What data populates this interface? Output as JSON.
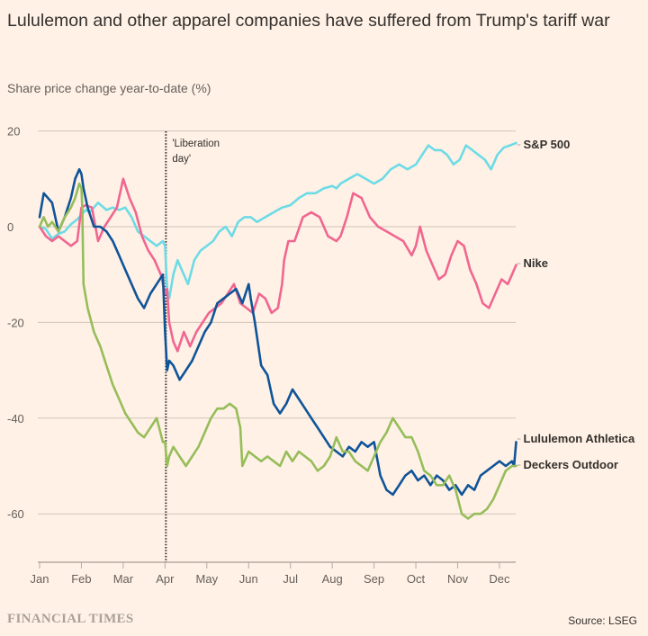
{
  "title": "Lululemon and other apparel companies have suffered from Trump's tariff war",
  "subtitle": "Share price change year-to-date (%)",
  "footer": {
    "brand": "FINANCIAL TIMES",
    "source": "Source: LSEG"
  },
  "chart_data": {
    "type": "line",
    "title": "Lululemon and other apparel companies have suffered from Trump's tariff war",
    "ylabel": "Share price change year-to-date (%)",
    "xlabel": "",
    "x_unit": "months since Jan 1",
    "xlim": [
      0,
      11.4
    ],
    "ylim": [
      -70,
      20
    ],
    "yticks": [
      20,
      0,
      -20,
      -40,
      -60
    ],
    "xticks": [
      {
        "x": 0,
        "label": "Jan"
      },
      {
        "x": 1,
        "label": "Feb"
      },
      {
        "x": 2,
        "label": "Mar"
      },
      {
        "x": 3,
        "label": "Apr"
      },
      {
        "x": 4,
        "label": "May"
      },
      {
        "x": 5,
        "label": "Jun"
      },
      {
        "x": 6,
        "label": "Jul"
      },
      {
        "x": 7,
        "label": "Aug"
      },
      {
        "x": 8,
        "label": "Sep"
      },
      {
        "x": 9,
        "label": "Oct"
      },
      {
        "x": 10,
        "label": "Nov"
      },
      {
        "x": 11,
        "label": "Dec"
      }
    ],
    "grid": true,
    "annotations": [
      {
        "x": 3.0,
        "label_line1": "'Liberation",
        "label_line2": "day'",
        "style": "dotted-vline"
      }
    ],
    "series": [
      {
        "name": "S&P 500",
        "color": "#6ddbe6",
        "x": [
          0,
          0.15,
          0.3,
          0.45,
          0.6,
          0.75,
          0.9,
          1.0,
          1.1,
          1.2,
          1.4,
          1.6,
          1.75,
          1.9,
          2.05,
          2.2,
          2.35,
          2.5,
          2.65,
          2.8,
          2.95,
          3.0,
          3.05,
          3.1,
          3.2,
          3.3,
          3.4,
          3.55,
          3.7,
          3.85,
          4.0,
          4.15,
          4.3,
          4.45,
          4.6,
          4.75,
          4.9,
          5.05,
          5.2,
          5.4,
          5.6,
          5.8,
          6.0,
          6.2,
          6.4,
          6.6,
          6.8,
          7.0,
          7.1,
          7.2,
          7.4,
          7.6,
          7.8,
          8.0,
          8.2,
          8.4,
          8.6,
          8.8,
          9.0,
          9.15,
          9.3,
          9.45,
          9.6,
          9.75,
          9.9,
          10.05,
          10.2,
          10.35,
          10.5,
          10.65,
          10.8,
          10.95,
          11.1,
          11.25,
          11.4
        ],
        "y": [
          0,
          -0.5,
          -2.5,
          -1.5,
          -1,
          0.5,
          1.5,
          2.5,
          3.5,
          3,
          5,
          3.5,
          4,
          3.5,
          4,
          2,
          -1,
          -2,
          -3,
          -4,
          -3,
          -4,
          -13,
          -15,
          -10,
          -7,
          -9,
          -12,
          -7,
          -5,
          -4,
          -3,
          -1,
          0,
          -2,
          1,
          2,
          2,
          1,
          2,
          3,
          4,
          4.5,
          6,
          7,
          7,
          8,
          8.5,
          8,
          9,
          10,
          11,
          10,
          9,
          10,
          12,
          13,
          12,
          13,
          15,
          17,
          16,
          16,
          15,
          13,
          14,
          17,
          16,
          15,
          14,
          12,
          15,
          16.5,
          17,
          17.5
        ],
        "label": "S&P 500"
      },
      {
        "name": "Nike",
        "color": "#f06690",
        "x": [
          0,
          0.15,
          0.3,
          0.45,
          0.6,
          0.75,
          0.9,
          1.0,
          1.1,
          1.25,
          1.4,
          1.55,
          1.7,
          1.85,
          2.0,
          2.15,
          2.3,
          2.45,
          2.6,
          2.75,
          2.9,
          3.0,
          3.05,
          3.1,
          3.2,
          3.3,
          3.45,
          3.6,
          3.75,
          3.9,
          4.05,
          4.2,
          4.35,
          4.5,
          4.65,
          4.8,
          4.95,
          5.1,
          5.25,
          5.4,
          5.55,
          5.7,
          5.8,
          5.85,
          5.95,
          6.1,
          6.3,
          6.5,
          6.7,
          6.9,
          7.1,
          7.2,
          7.35,
          7.5,
          7.7,
          7.9,
          8.1,
          8.3,
          8.5,
          8.7,
          8.9,
          9.0,
          9.1,
          9.25,
          9.4,
          9.55,
          9.7,
          9.85,
          10.0,
          10.15,
          10.3,
          10.45,
          10.6,
          10.75,
          10.9,
          11.05,
          11.2,
          11.3,
          11.4
        ],
        "y": [
          0,
          -2,
          -3,
          -2,
          -3,
          -4,
          -3,
          4,
          4.5,
          4,
          -3,
          0,
          2,
          4,
          10,
          6,
          3,
          -2,
          -5,
          -7,
          -10,
          -14,
          -13,
          -20,
          -24,
          -26,
          -22,
          -25,
          -22,
          -20,
          -18,
          -17,
          -16,
          -14,
          -12,
          -16,
          -17,
          -18,
          -14,
          -15,
          -18,
          -17,
          -12,
          -7,
          -3,
          -3,
          2,
          3,
          2,
          -2,
          -3,
          -2,
          2,
          7,
          6,
          2,
          0,
          -1,
          -2,
          -3,
          -6,
          -4,
          0,
          -5,
          -8,
          -11,
          -10,
          -6,
          -3,
          -4,
          -9,
          -12,
          -16,
          -17,
          -14,
          -11,
          -12,
          -10,
          -8
        ],
        "label": "Nike"
      },
      {
        "name": "Lululemon Athletica",
        "color": "#0f5499",
        "x": [
          0,
          0.1,
          0.2,
          0.3,
          0.45,
          0.6,
          0.75,
          0.85,
          0.95,
          1.0,
          1.05,
          1.15,
          1.3,
          1.45,
          1.6,
          1.75,
          1.9,
          2.05,
          2.2,
          2.35,
          2.5,
          2.65,
          2.8,
          2.95,
          3.0,
          3.05,
          3.1,
          3.2,
          3.35,
          3.5,
          3.65,
          3.8,
          3.95,
          4.1,
          4.25,
          4.4,
          4.55,
          4.7,
          4.85,
          5.0,
          5.05,
          5.15,
          5.3,
          5.45,
          5.6,
          5.75,
          5.9,
          6.05,
          6.2,
          6.35,
          6.5,
          6.65,
          6.8,
          6.95,
          7.1,
          7.25,
          7.4,
          7.55,
          7.7,
          7.85,
          8.0,
          8.15,
          8.3,
          8.45,
          8.6,
          8.75,
          8.9,
          9.05,
          9.2,
          9.35,
          9.5,
          9.65,
          9.8,
          9.95,
          10.1,
          10.25,
          10.4,
          10.55,
          10.7,
          10.85,
          11.0,
          11.15,
          11.3,
          11.35,
          11.4
        ],
        "y": [
          2,
          7,
          6,
          5,
          -1,
          2,
          6,
          10,
          12,
          11,
          8,
          4,
          0,
          0,
          -1,
          -3,
          -6,
          -9,
          -12,
          -15,
          -17,
          -14,
          -12,
          -10,
          -22,
          -30,
          -28,
          -29,
          -32,
          -30,
          -28,
          -25,
          -22,
          -20,
          -16,
          -15,
          -14,
          -13,
          -16,
          -12,
          -15,
          -20,
          -29,
          -31,
          -37,
          -39,
          -37,
          -34,
          -36,
          -38,
          -40,
          -42,
          -44,
          -46,
          -47,
          -48,
          -46,
          -47,
          -45,
          -46,
          -45,
          -52,
          -55,
          -56,
          -54,
          -52,
          -51,
          -53,
          -52,
          -54,
          -52,
          -53,
          -55,
          -54,
          -56,
          -54,
          -55,
          -52,
          -51,
          -50,
          -49,
          -50,
          -49,
          -50,
          -45
        ],
        "label": "Lululemon Athletica"
      },
      {
        "name": "Deckers Outdoor",
        "color": "#96bd5a",
        "x": [
          0,
          0.1,
          0.2,
          0.3,
          0.45,
          0.6,
          0.75,
          0.85,
          0.95,
          1.0,
          1.02,
          1.05,
          1.15,
          1.3,
          1.45,
          1.6,
          1.75,
          1.9,
          2.05,
          2.2,
          2.35,
          2.5,
          2.65,
          2.8,
          2.95,
          3.0,
          3.05,
          3.1,
          3.2,
          3.35,
          3.5,
          3.65,
          3.8,
          3.95,
          4.1,
          4.25,
          4.4,
          4.55,
          4.7,
          4.8,
          4.85,
          5.0,
          5.15,
          5.3,
          5.45,
          5.6,
          5.75,
          5.9,
          6.05,
          6.2,
          6.35,
          6.5,
          6.65,
          6.8,
          6.95,
          7.1,
          7.25,
          7.4,
          7.55,
          7.7,
          7.85,
          8.0,
          8.15,
          8.3,
          8.45,
          8.6,
          8.75,
          8.9,
          9.05,
          9.2,
          9.35,
          9.5,
          9.65,
          9.8,
          9.95,
          10.1,
          10.25,
          10.4,
          10.55,
          10.7,
          10.85,
          11.0,
          11.15,
          11.3,
          11.4
        ],
        "y": [
          0,
          2,
          0,
          1,
          -1,
          2,
          4,
          6,
          9,
          8,
          4,
          -12,
          -17,
          -22,
          -25,
          -29,
          -33,
          -36,
          -39,
          -41,
          -43,
          -44,
          -42,
          -40,
          -45,
          -45,
          -50,
          -48,
          -46,
          -48,
          -50,
          -48,
          -46,
          -43,
          -40,
          -38,
          -38,
          -37,
          -38,
          -42,
          -50,
          -47,
          -48,
          -49,
          -48,
          -49,
          -50,
          -47,
          -49,
          -47,
          -48,
          -49,
          -51,
          -50,
          -48,
          -44,
          -47,
          -47,
          -49,
          -50,
          -51,
          -48,
          -45,
          -43,
          -40,
          -42,
          -44,
          -44,
          -47,
          -51,
          -52,
          -54,
          -54,
          -52,
          -55,
          -60,
          -61,
          -60,
          -60,
          -59,
          -57,
          -54,
          -51,
          -50,
          -50
        ],
        "label": "Deckers Outdoor"
      }
    ]
  }
}
